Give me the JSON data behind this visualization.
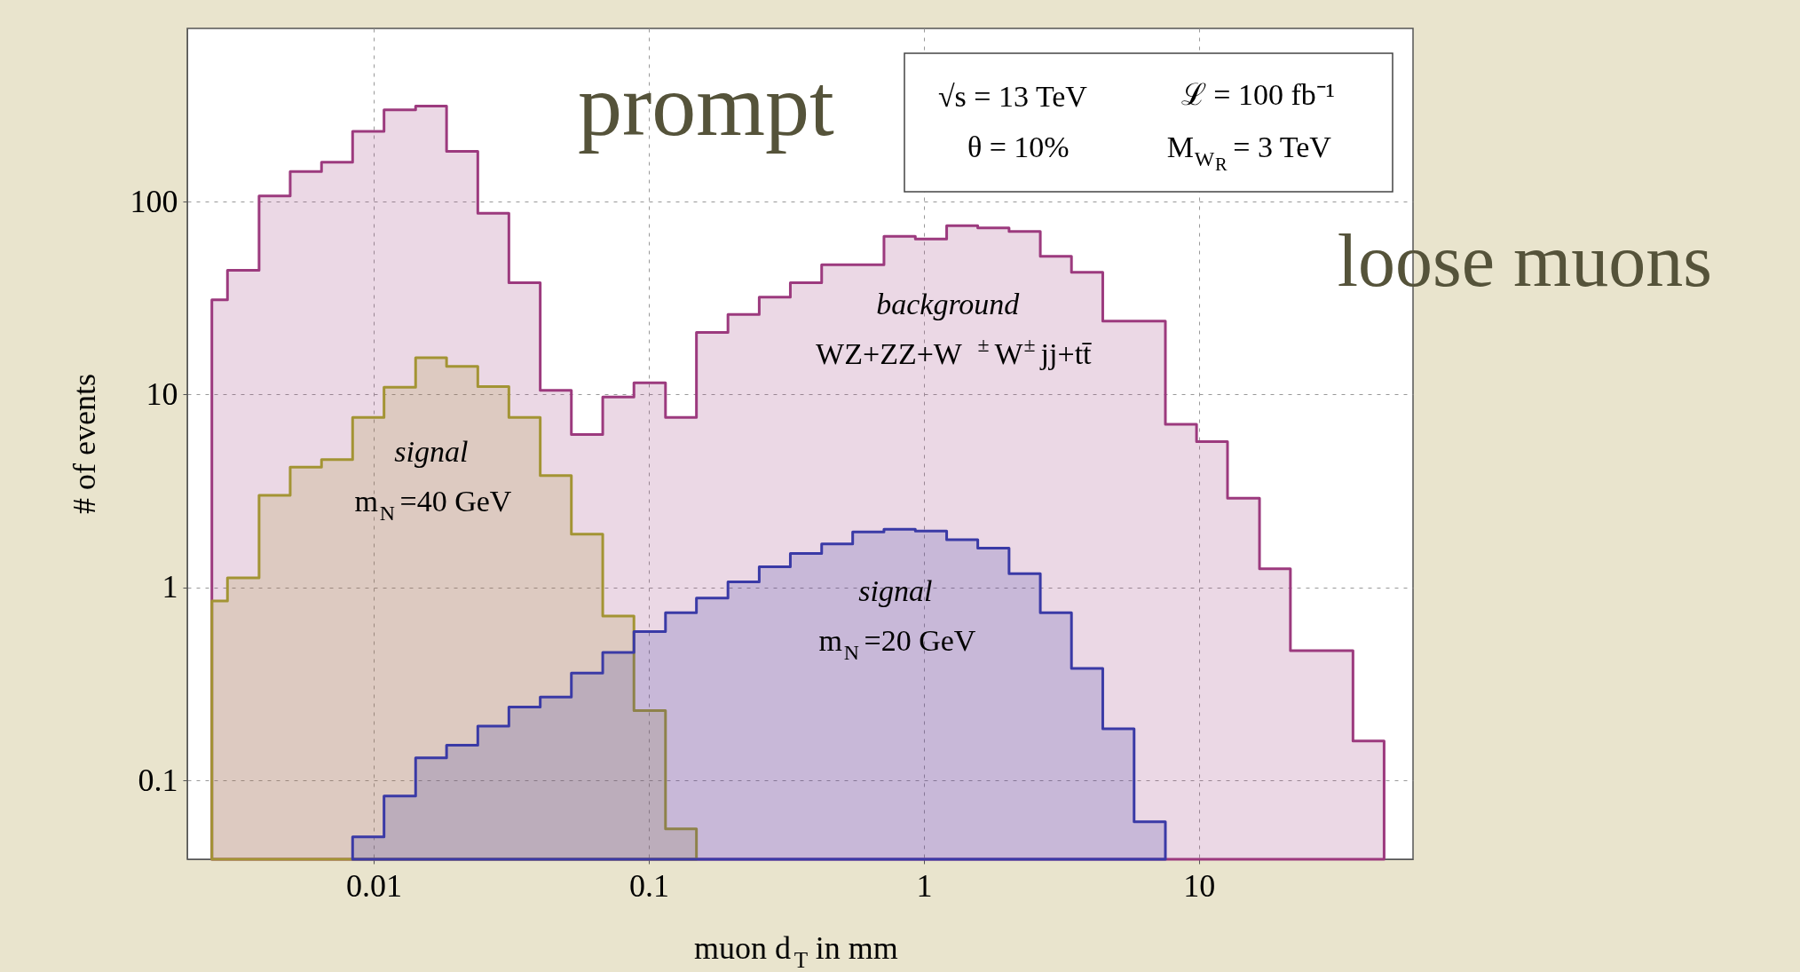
{
  "chart_data": {
    "type": "histogram",
    "xlabel": "muon d$_{T}$ in mm",
    "ylabel": "# of events",
    "log": "xy",
    "grid": true,
    "legend": false,
    "xlim": [
      0.0021,
      60
    ],
    "ylim": [
      0.039,
      790
    ],
    "xticks": [
      0.01,
      0.1,
      1,
      10
    ],
    "yticks": [
      0.1,
      1,
      10,
      100
    ],
    "bins": [
      0.00258,
      0.00294,
      0.00383,
      0.00497,
      0.00646,
      0.00838,
      0.0109,
      0.0142,
      0.0184,
      0.0239,
      0.031,
      0.0403,
      0.0523,
      0.068,
      0.0883,
      0.115,
      0.149,
      0.194,
      0.252,
      0.327,
      0.425,
      0.551,
      0.716,
      0.931,
      1.21,
      1.57,
      2.04,
      2.65,
      3.44,
      4.47,
      5.81,
      7.55,
      9.8,
      12.7,
      16.6,
      21.5,
      27.9,
      36.3,
      47.1
    ],
    "series": [
      {
        "name": "background\nWZ+ZZ+W$^{±}$W$^{±}$jj+tt̄",
        "color": "#9c3a7e",
        "values": [
          31,
          44,
          107,
          143,
          160,
          231,
          299,
          313,
          182,
          87,
          38,
          10.5,
          6.2,
          9.7,
          11.5,
          7.6,
          21,
          26,
          32,
          38,
          47,
          47,
          66,
          64,
          75,
          73,
          70,
          52,
          43,
          24,
          24,
          7.0,
          5.7,
          2.9,
          1.25,
          0.47,
          0.47,
          0.16
        ]
      },
      {
        "name": "signal\nm$_{N}$=40 GeV",
        "color": "#a39434",
        "bins": [
          0.00258,
          0.00294,
          0.00383,
          0.00497,
          0.00646,
          0.00838,
          0.0109,
          0.0142,
          0.0184,
          0.0239,
          0.031,
          0.0403,
          0.0523,
          0.068,
          0.0883,
          0.115,
          0.149
        ],
        "values": [
          0.85,
          1.12,
          3.0,
          4.2,
          4.6,
          7.6,
          10.9,
          15.5,
          14.0,
          11.0,
          7.6,
          3.8,
          1.89,
          0.71,
          0.23,
          0.056
        ]
      },
      {
        "name": "signal\nm$_{N}$=20 GeV",
        "color": "#3a3aa6",
        "bins": [
          0.00838,
          0.0109,
          0.0142,
          0.0184,
          0.0239,
          0.031,
          0.0403,
          0.0523,
          0.068,
          0.0883,
          0.115,
          0.149,
          0.194,
          0.252,
          0.327,
          0.425,
          0.551,
          0.716,
          0.931,
          1.21,
          1.57,
          2.04,
          2.65,
          3.44,
          4.47,
          5.81,
          7.55
        ],
        "values": [
          0.051,
          0.083,
          0.131,
          0.152,
          0.191,
          0.24,
          0.27,
          0.36,
          0.46,
          0.59,
          0.74,
          0.88,
          1.07,
          1.28,
          1.5,
          1.68,
          1.94,
          2.0,
          1.96,
          1.77,
          1.6,
          1.18,
          0.74,
          0.38,
          0.185,
          0.061
        ]
      }
    ],
    "annotations": [
      "√s = 13 TeV",
      "ℒ = 100 fb⁻¹",
      "θ = 10%",
      "M$_{W}$$_{R}$ = 3 TeV",
      "prompt",
      "loose muons"
    ]
  }
}
